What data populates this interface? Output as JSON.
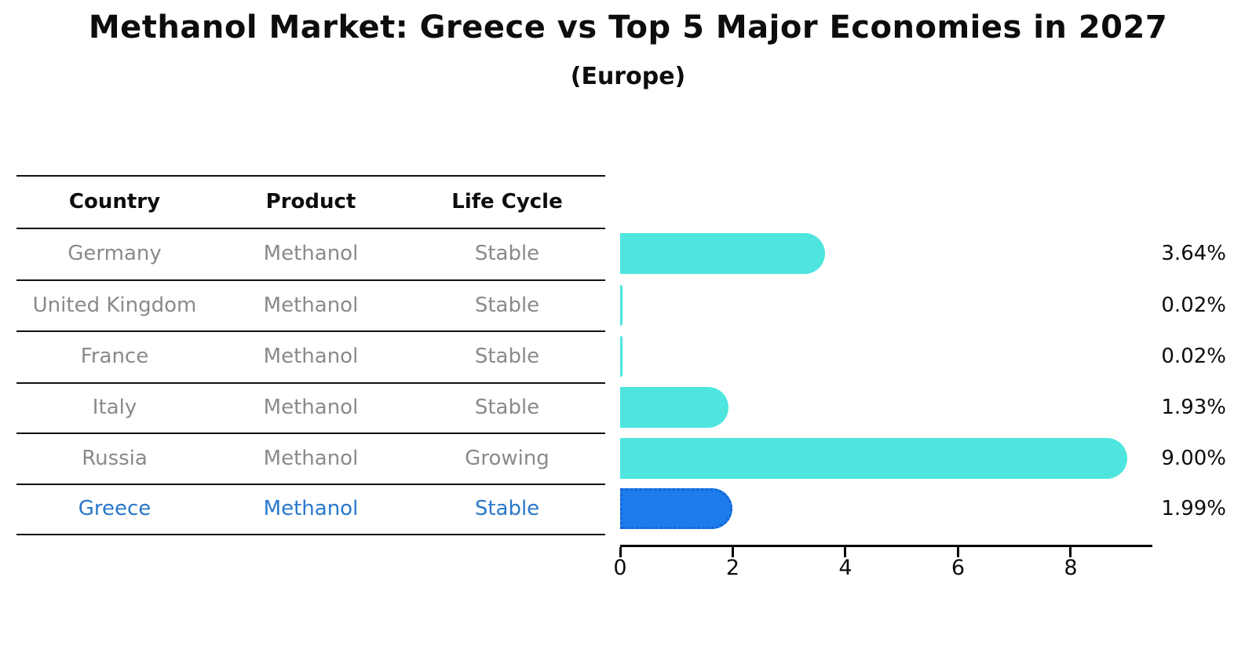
{
  "title": "Methanol Market: Greece vs Top 5 Major Economies in 2027",
  "subtitle": "(Europe)",
  "table": {
    "headers": [
      "Country",
      "Product",
      "Life Cycle"
    ]
  },
  "colors": {
    "bar_default": "#4DE5DE",
    "bar_highlight_fill": "#1C7CEC",
    "bar_highlight_border": "#1463D6",
    "highlight_text": "#2878CB",
    "row_text": "#8A8A8A",
    "axis_and_lines": "#111111",
    "label_text": "#0D0D0D"
  },
  "chart_data": {
    "type": "bar",
    "orientation": "horizontal",
    "title": "Methanol Market: Greece vs Top 5 Major Economies in 2027",
    "subtitle": "(Europe)",
    "categories": [
      "Germany",
      "United Kingdom",
      "France",
      "Italy",
      "Russia",
      "Greece"
    ],
    "values": [
      3.64,
      0.02,
      0.02,
      1.93,
      9.0,
      1.99
    ],
    "value_labels": [
      "3.64%",
      "0.02%",
      "0.02%",
      "1.93%",
      "9.00%",
      "1.99%"
    ],
    "x_ticks": [
      0,
      2,
      4,
      6,
      8
    ],
    "xlim": [
      0,
      9.45
    ],
    "grid": false,
    "legend": false,
    "highlighted_category": "Greece",
    "rows": [
      {
        "country": "Germany",
        "product": "Methanol",
        "life_cycle": "Stable",
        "value": 3.64,
        "value_label": "3.64%",
        "highlight": false
      },
      {
        "country": "United Kingdom",
        "product": "Methanol",
        "life_cycle": "Stable",
        "value": 0.02,
        "value_label": "0.02%",
        "highlight": false
      },
      {
        "country": "France",
        "product": "Methanol",
        "life_cycle": "Stable",
        "value": 0.02,
        "value_label": "0.02%",
        "highlight": false
      },
      {
        "country": "Italy",
        "product": "Methanol",
        "life_cycle": "Stable",
        "value": 1.93,
        "value_label": "1.93%",
        "highlight": false
      },
      {
        "country": "Russia",
        "product": "Methanol",
        "life_cycle": "Growing",
        "value": 9.0,
        "value_label": "9.00%",
        "highlight": false
      },
      {
        "country": "Greece",
        "product": "Methanol",
        "life_cycle": "Stable",
        "value": 1.99,
        "value_label": "1.99%",
        "highlight": true
      }
    ]
  }
}
